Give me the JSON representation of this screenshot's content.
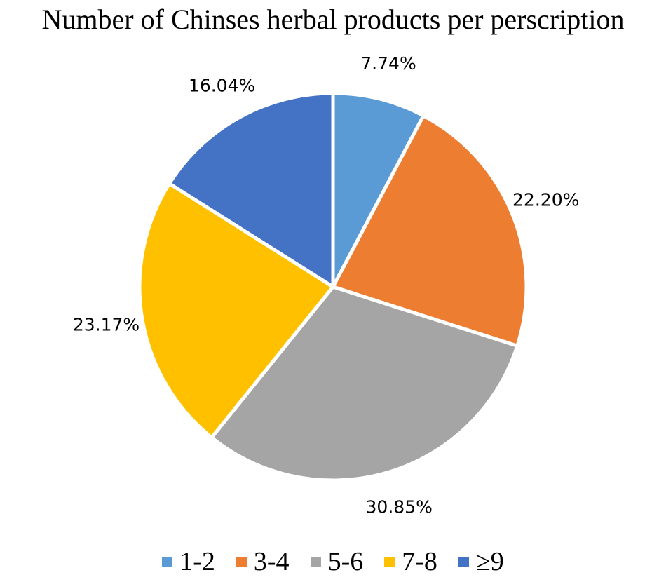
{
  "chart_data": {
    "type": "pie",
    "title": "Number of Chinses herbal products per perscription",
    "categories": [
      "1-2",
      "3-4",
      "5-6",
      "7-8",
      "≥9"
    ],
    "values": [
      7.74,
      22.2,
      30.85,
      23.17,
      16.04
    ],
    "value_labels": [
      "7.74%",
      "22.20%",
      "30.85%",
      "23.17%",
      "16.04%"
    ],
    "colors": [
      "#5B9BD5",
      "#ED7D31",
      "#A5A5A5",
      "#FFC000",
      "#4472C4"
    ],
    "start_angle": "12 o'clock",
    "direction": "clockwise",
    "legend_position": "bottom"
  }
}
